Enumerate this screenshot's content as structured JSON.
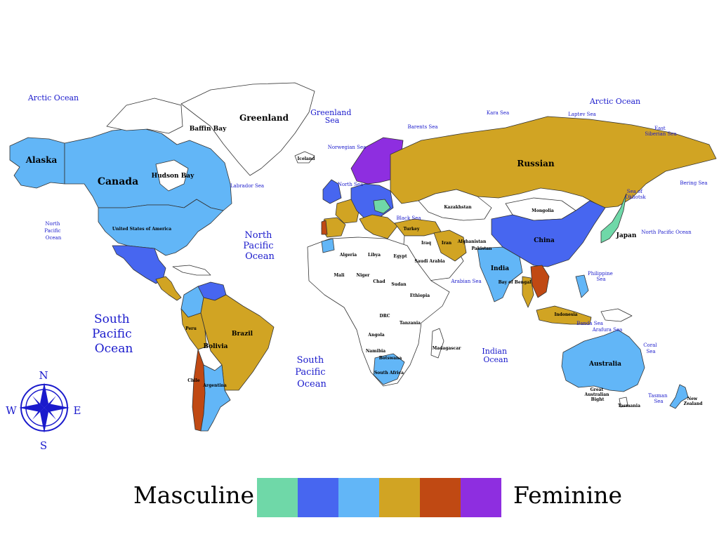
{
  "colors": {
    "land": "#ffffff",
    "border": "#333333",
    "ocean_label": "#1a1acc",
    "scale": [
      "#6fd8a8",
      "#4766f0",
      "#62b6f7",
      "#d1a423",
      "#c04913",
      "#8e2ee0"
    ]
  },
  "legend": {
    "low_label": "Masculine",
    "high_label": "Feminine"
  },
  "compass": {
    "n": "N",
    "s": "S",
    "e": "E",
    "w": "W"
  },
  "oceans": {
    "arctic_left": "Arctic Ocean",
    "arctic_right": "Arctic Ocean",
    "north_pacific_left": [
      "North",
      "Pacific",
      "Ocean"
    ],
    "north_pacific_mid": [
      "North",
      "Pacific",
      "Ocean"
    ],
    "north_pacific_right": "North Pacific Ocean",
    "south_pacific_left": [
      "South",
      "Pacific",
      "Ocean"
    ],
    "south_pacific_mid": [
      "South",
      "Pacific",
      "Ocean"
    ],
    "indian": [
      "Indian",
      "Ocean"
    ],
    "greenland_sea": [
      "Greenland",
      "Sea"
    ],
    "baffin_bay": "Baffin Bay",
    "hudson_bay": "Hudson Bay",
    "labrador_sea": "Labrador Sea",
    "norwegian_sea": "Norwegian Sea",
    "barents_sea": "Barents Sea",
    "kara_sea": "Kara Sea",
    "laptev_sea": "Laptev Sea",
    "east_siberian_sea": [
      "East",
      "Siberian Sea"
    ],
    "bering_sea": "Bering Sea",
    "sea_of_okhotsk": [
      "Sea of",
      "Okhotsk"
    ],
    "philippine_sea": [
      "Philippine",
      "Sea"
    ],
    "arabian_sea": "Arabian Sea",
    "bay_of_bengal": "Bay of Bengal",
    "coral_sea": [
      "Coral",
      "Sea"
    ],
    "tasman_sea": [
      "Tasman",
      "Sea"
    ],
    "great_australian_bight": [
      "Great",
      "Australian",
      "Bight"
    ],
    "banda_sea": "Banda Sea",
    "arafura_sea": "Arafura Sea",
    "north_sea": "North Sea",
    "black_sea": "Black Sea"
  },
  "countries": {
    "greenland": "Greenland",
    "alaska": "Alaska",
    "canada": "Canada",
    "usa": "United States of America",
    "russian": "Russian",
    "china": "China",
    "mongolia": "Mongolia",
    "kazakhstan": "Kazakhstan",
    "india": "India",
    "japan": "Japan",
    "australia": "Australia",
    "new_zealand": [
      "New",
      "Zealand"
    ],
    "brazil": "Brazil",
    "peru": "Peru",
    "bolivia": "Bolivia",
    "chile": "Chile",
    "argentina": "Argentina",
    "turkey": "Turkey",
    "iran": "Iran",
    "iraq": "Iraq",
    "saudi_arabia": "Saudi Arabia",
    "egypt": "Egypt",
    "libya": "Libya",
    "algeria": "Algeria",
    "mali": "Mali",
    "niger": "Niger",
    "chad": "Chad",
    "sudan": "Sudan",
    "ethiopia": "Ethiopia",
    "drc": "DRC",
    "angola": "Angola",
    "namibia": "Namibia",
    "botswana": "Botswana",
    "south_africa": "South Africa",
    "madagascar": "Madagascar",
    "tanzania": "Tanzania",
    "iceland": "Iceland",
    "tasmania": "Tasmania",
    "indonesia": "Indonesia",
    "afghanistan": "Afghanistan",
    "pakistan": "Pakistan"
  }
}
